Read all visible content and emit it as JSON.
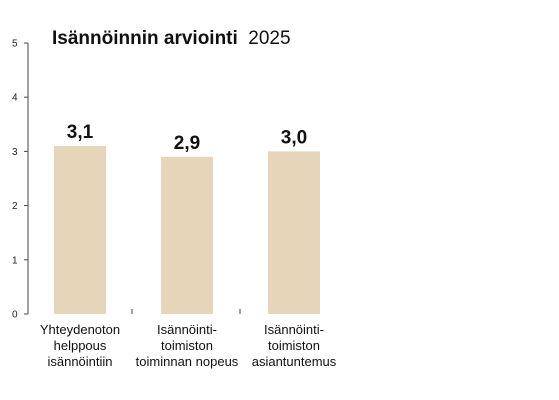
{
  "chart_title": {
    "bold": "Isännöinnin arviointi",
    "regular": "2025"
  },
  "chart_data": {
    "type": "bar",
    "title": "Isännöinnin arviointi 2025",
    "categories": [
      [
        "Yhteydenoton",
        "helppous",
        "isännöintiin"
      ],
      [
        "Isännöinti-",
        "toimiston",
        "toiminnan nopeus"
      ],
      [
        "Isännöinti-",
        "toimiston",
        "asiantuntemus"
      ]
    ],
    "values": [
      3.1,
      2.9,
      3.0
    ],
    "value_labels": [
      "3,1",
      "2,9",
      "3,0"
    ],
    "ylim": [
      0,
      5
    ],
    "yticks": [
      "0",
      "1",
      "2",
      "3",
      "4",
      "5"
    ],
    "xlabel": "",
    "ylabel": "",
    "grid": false,
    "colors": {
      "bar": "#e6d5b8",
      "axis": "#444444",
      "text": "#111111"
    }
  }
}
